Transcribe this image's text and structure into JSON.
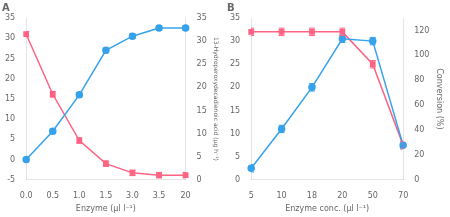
{
  "chart_data": [
    {
      "type": "line",
      "title": "A",
      "categories": [
        "0.0",
        "0.5",
        "1.0",
        "1.5",
        "3.0",
        "3.5",
        "20"
      ],
      "xlabel": "Enzyme (µl l⁻¹)",
      "y2label": "13-Hydroperoxydecadienoic acid (µg h⁻¹)",
      "ylim": [
        -5,
        35
      ],
      "yticks": [
        -5,
        0,
        5,
        10,
        15,
        20,
        25,
        30,
        35
      ],
      "y2lim": [
        0,
        35
      ],
      "y2ticks": [
        0,
        5,
        10,
        15,
        20,
        25,
        30,
        35
      ],
      "grid": false,
      "series": [
        {
          "values": [
            0.0,
            7.0,
            16.0,
            27.0,
            30.5,
            32.5,
            32.5
          ],
          "error": [
            0.6,
            0.6,
            0.6,
            0.6,
            0.6,
            0.6,
            0.6
          ],
          "marker": "circle"
        },
        {
          "values": [
            31.5,
            18.5,
            8.5,
            3.5,
            1.5,
            1.0,
            1.0
          ],
          "error": [
            0.6,
            0.6,
            0.6,
            0.6,
            0.6,
            0.6,
            0.6
          ],
          "marker": "square",
          "axis": "y2"
        }
      ]
    },
    {
      "type": "line",
      "title": "B",
      "categories": [
        "5",
        "10",
        "18",
        "20",
        "50",
        "70"
      ],
      "xlabel": "Enzyme conc. (µl l⁻¹)",
      "y2label": "Conversion (%)",
      "ylim": [
        0,
        35
      ],
      "yticks": [
        0,
        5,
        10,
        15,
        20,
        25,
        30,
        35
      ],
      "y2lim": [
        0,
        130
      ],
      "y2ticks": [
        0,
        20,
        40,
        60,
        80,
        100,
        120
      ],
      "grid": false,
      "series": [
        {
          "values": [
            2.5,
            11.0,
            20.0,
            30.5,
            30.0,
            7.5
          ],
          "error": [
            0.8,
            0.8,
            0.8,
            0.8,
            0.8,
            0.8
          ],
          "marker": "circle"
        },
        {
          "values": [
            118.85714285714286,
            118.85714285714286,
            118.85714285714286,
            118.85714285714286,
            92.85714285714286,
            27.857142857142858
          ],
          "error": [
            2.9714285714285715,
            2.9714285714285715,
            2.9714285714285715,
            2.9714285714285715,
            2.9714285714285715,
            2.9714285714285715
          ],
          "marker": "square",
          "axis": "y2"
        }
      ]
    }
  ]
}
